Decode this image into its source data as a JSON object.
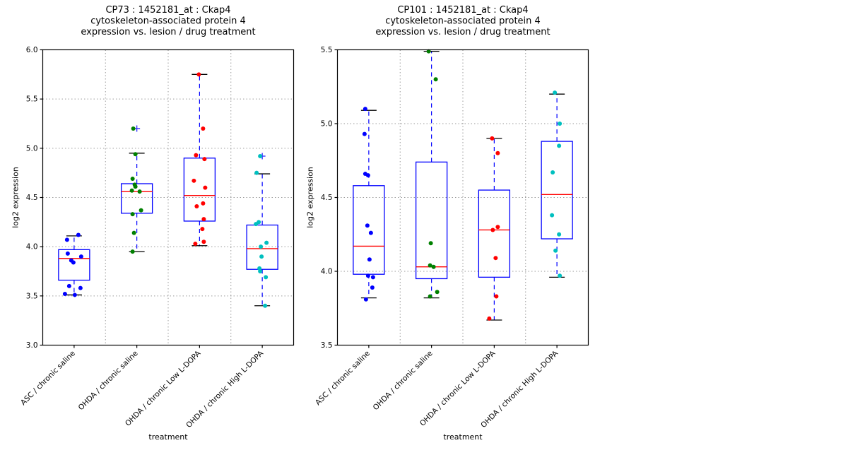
{
  "figure_bg": "#ffffff",
  "styles": {
    "box_edge": "#0000ff",
    "median": "#ff0000",
    "whisker": "#0000ff",
    "cap": "#000000",
    "grid": "#9a9a9a",
    "flier": "#3333ff",
    "axis": "#000000",
    "text": "#000000"
  },
  "chart_data": [
    {
      "type": "box",
      "title_lines": [
        "CP73 : 1452181_at : Ckap4",
        "cytoskeleton-associated protein 4",
        "expression vs. lesion / drug treatment"
      ],
      "xlabel": "treatment",
      "ylabel": "log2 expression",
      "ylim": [
        3.0,
        6.0
      ],
      "yticks": [
        3.0,
        3.5,
        4.0,
        4.5,
        5.0,
        5.5,
        6.0
      ],
      "grid": true,
      "categories": [
        "ASC / chronic saline",
        "OHDA / chronic saline",
        "OHDA / chronic Low L-DOPA",
        "OHDA / chronic High L-DOPA"
      ],
      "groups": [
        {
          "label": "ASC / chronic saline",
          "point_color": "#0000ff",
          "whisker_low": 3.51,
          "q1": 3.66,
          "median": 3.88,
          "q3": 3.97,
          "whisker_high": 4.11,
          "fliers": [],
          "points": [
            {
              "v": 4.12,
              "dx": 6
            },
            {
              "v": 4.07,
              "dx": -10
            },
            {
              "v": 3.93,
              "dx": -9
            },
            {
              "v": 3.9,
              "dx": 10
            },
            {
              "v": 3.86,
              "dx": -4
            },
            {
              "v": 3.84,
              "dx": -1
            },
            {
              "v": 3.6,
              "dx": -7
            },
            {
              "v": 3.58,
              "dx": 9
            },
            {
              "v": 3.52,
              "dx": -13
            },
            {
              "v": 3.51,
              "dx": 1
            }
          ]
        },
        {
          "label": "OHDA / chronic saline",
          "point_color": "#008000",
          "whisker_low": 3.95,
          "q1": 4.34,
          "median": 4.56,
          "q3": 4.64,
          "whisker_high": 4.95,
          "fliers": [
            5.2
          ],
          "points": [
            {
              "v": 5.2,
              "dx": -5
            },
            {
              "v": 4.94,
              "dx": -2
            },
            {
              "v": 4.69,
              "dx": -6
            },
            {
              "v": 4.63,
              "dx": -3
            },
            {
              "v": 4.61,
              "dx": -2
            },
            {
              "v": 4.57,
              "dx": -7
            },
            {
              "v": 4.56,
              "dx": 4
            },
            {
              "v": 4.37,
              "dx": 6
            },
            {
              "v": 4.33,
              "dx": -6
            },
            {
              "v": 4.14,
              "dx": -4
            },
            {
              "v": 3.95,
              "dx": -6
            }
          ]
        },
        {
          "label": "OHDA / chronic Low L-DOPA",
          "point_color": "#ff0000",
          "whisker_low": 4.01,
          "q1": 4.26,
          "median": 4.52,
          "q3": 4.9,
          "whisker_high": 5.75,
          "fliers": [],
          "points": [
            {
              "v": 5.75,
              "dx": -1
            },
            {
              "v": 5.2,
              "dx": 5
            },
            {
              "v": 4.93,
              "dx": -5
            },
            {
              "v": 4.89,
              "dx": 7
            },
            {
              "v": 4.67,
              "dx": -8
            },
            {
              "v": 4.6,
              "dx": 8
            },
            {
              "v": 4.44,
              "dx": 5
            },
            {
              "v": 4.41,
              "dx": -4
            },
            {
              "v": 4.28,
              "dx": 6
            },
            {
              "v": 4.18,
              "dx": 4
            },
            {
              "v": 4.05,
              "dx": 6
            },
            {
              "v": 4.03,
              "dx": -6
            }
          ]
        },
        {
          "label": "OHDA / chronic High L-DOPA",
          "point_color": "#00bfbf",
          "whisker_low": 3.4,
          "q1": 3.77,
          "median": 3.98,
          "q3": 4.22,
          "whisker_high": 4.74,
          "fliers": [
            4.92
          ],
          "points": [
            {
              "v": 4.92,
              "dx": -3
            },
            {
              "v": 4.75,
              "dx": -8
            },
            {
              "v": 4.25,
              "dx": -5
            },
            {
              "v": 4.23,
              "dx": -9
            },
            {
              "v": 4.04,
              "dx": 6
            },
            {
              "v": 4.0,
              "dx": -2
            },
            {
              "v": 3.9,
              "dx": -1
            },
            {
              "v": 3.78,
              "dx": -4
            },
            {
              "v": 3.75,
              "dx": -3
            },
            {
              "v": 3.69,
              "dx": 5
            },
            {
              "v": 3.4,
              "dx": 4
            }
          ]
        }
      ]
    },
    {
      "type": "box",
      "title_lines": [
        "CP101 : 1452181_at : Ckap4",
        "cytoskeleton-associated protein 4",
        "expression vs. lesion / drug treatment"
      ],
      "xlabel": "treatment",
      "ylabel": "log2 expression",
      "ylim": [
        3.5,
        5.5
      ],
      "yticks": [
        3.5,
        4.0,
        4.5,
        5.0,
        5.5
      ],
      "grid": true,
      "categories": [
        "ASC / chronic saline",
        "OHDA / chronic saline",
        "OHDA / chronic Low L-DOPA",
        "OHDA / chronic High L-DOPA"
      ],
      "groups": [
        {
          "label": "ASC / chronic saline",
          "point_color": "#0000ff",
          "whisker_low": 3.82,
          "q1": 3.98,
          "median": 4.17,
          "q3": 4.58,
          "whisker_high": 5.09,
          "fliers": [],
          "points": [
            {
              "v": 5.1,
              "dx": -5
            },
            {
              "v": 4.93,
              "dx": -6
            },
            {
              "v": 4.66,
              "dx": -5
            },
            {
              "v": 4.65,
              "dx": -1
            },
            {
              "v": 4.31,
              "dx": -2
            },
            {
              "v": 4.26,
              "dx": 3
            },
            {
              "v": 4.08,
              "dx": 1
            },
            {
              "v": 3.97,
              "dx": -1
            },
            {
              "v": 3.96,
              "dx": 6
            },
            {
              "v": 3.89,
              "dx": 5
            },
            {
              "v": 3.81,
              "dx": -4
            }
          ]
        },
        {
          "label": "OHDA / chronic saline",
          "point_color": "#008000",
          "whisker_low": 3.82,
          "q1": 3.95,
          "median": 4.03,
          "q3": 4.74,
          "whisker_high": 5.49,
          "fliers": [],
          "points": [
            {
              "v": 5.49,
              "dx": -4
            },
            {
              "v": 5.3,
              "dx": 6
            },
            {
              "v": 4.19,
              "dx": -1
            },
            {
              "v": 4.04,
              "dx": -2
            },
            {
              "v": 4.03,
              "dx": 3
            },
            {
              "v": 3.86,
              "dx": 8
            },
            {
              "v": 3.83,
              "dx": -2
            }
          ]
        },
        {
          "label": "OHDA / chronic Low L-DOPA",
          "point_color": "#ff0000",
          "whisker_low": 3.67,
          "q1": 3.96,
          "median": 4.28,
          "q3": 4.55,
          "whisker_high": 4.9,
          "fliers": [],
          "points": [
            {
              "v": 4.9,
              "dx": -3
            },
            {
              "v": 4.8,
              "dx": 5
            },
            {
              "v": 4.3,
              "dx": 5
            },
            {
              "v": 4.28,
              "dx": -2
            },
            {
              "v": 4.09,
              "dx": 2
            },
            {
              "v": 3.83,
              "dx": 3
            },
            {
              "v": 3.68,
              "dx": -7
            }
          ]
        },
        {
          "label": "OHDA / chronic High L-DOPA",
          "point_color": "#00bfbf",
          "whisker_low": 3.96,
          "q1": 4.22,
          "median": 4.52,
          "q3": 4.88,
          "whisker_high": 5.2,
          "fliers": [],
          "points": [
            {
              "v": 5.21,
              "dx": -3
            },
            {
              "v": 5.0,
              "dx": 4
            },
            {
              "v": 4.85,
              "dx": 3
            },
            {
              "v": 4.67,
              "dx": -6
            },
            {
              "v": 4.38,
              "dx": -7
            },
            {
              "v": 4.25,
              "dx": 3
            },
            {
              "v": 4.14,
              "dx": -2
            },
            {
              "v": 3.97,
              "dx": 4
            }
          ]
        }
      ]
    }
  ]
}
